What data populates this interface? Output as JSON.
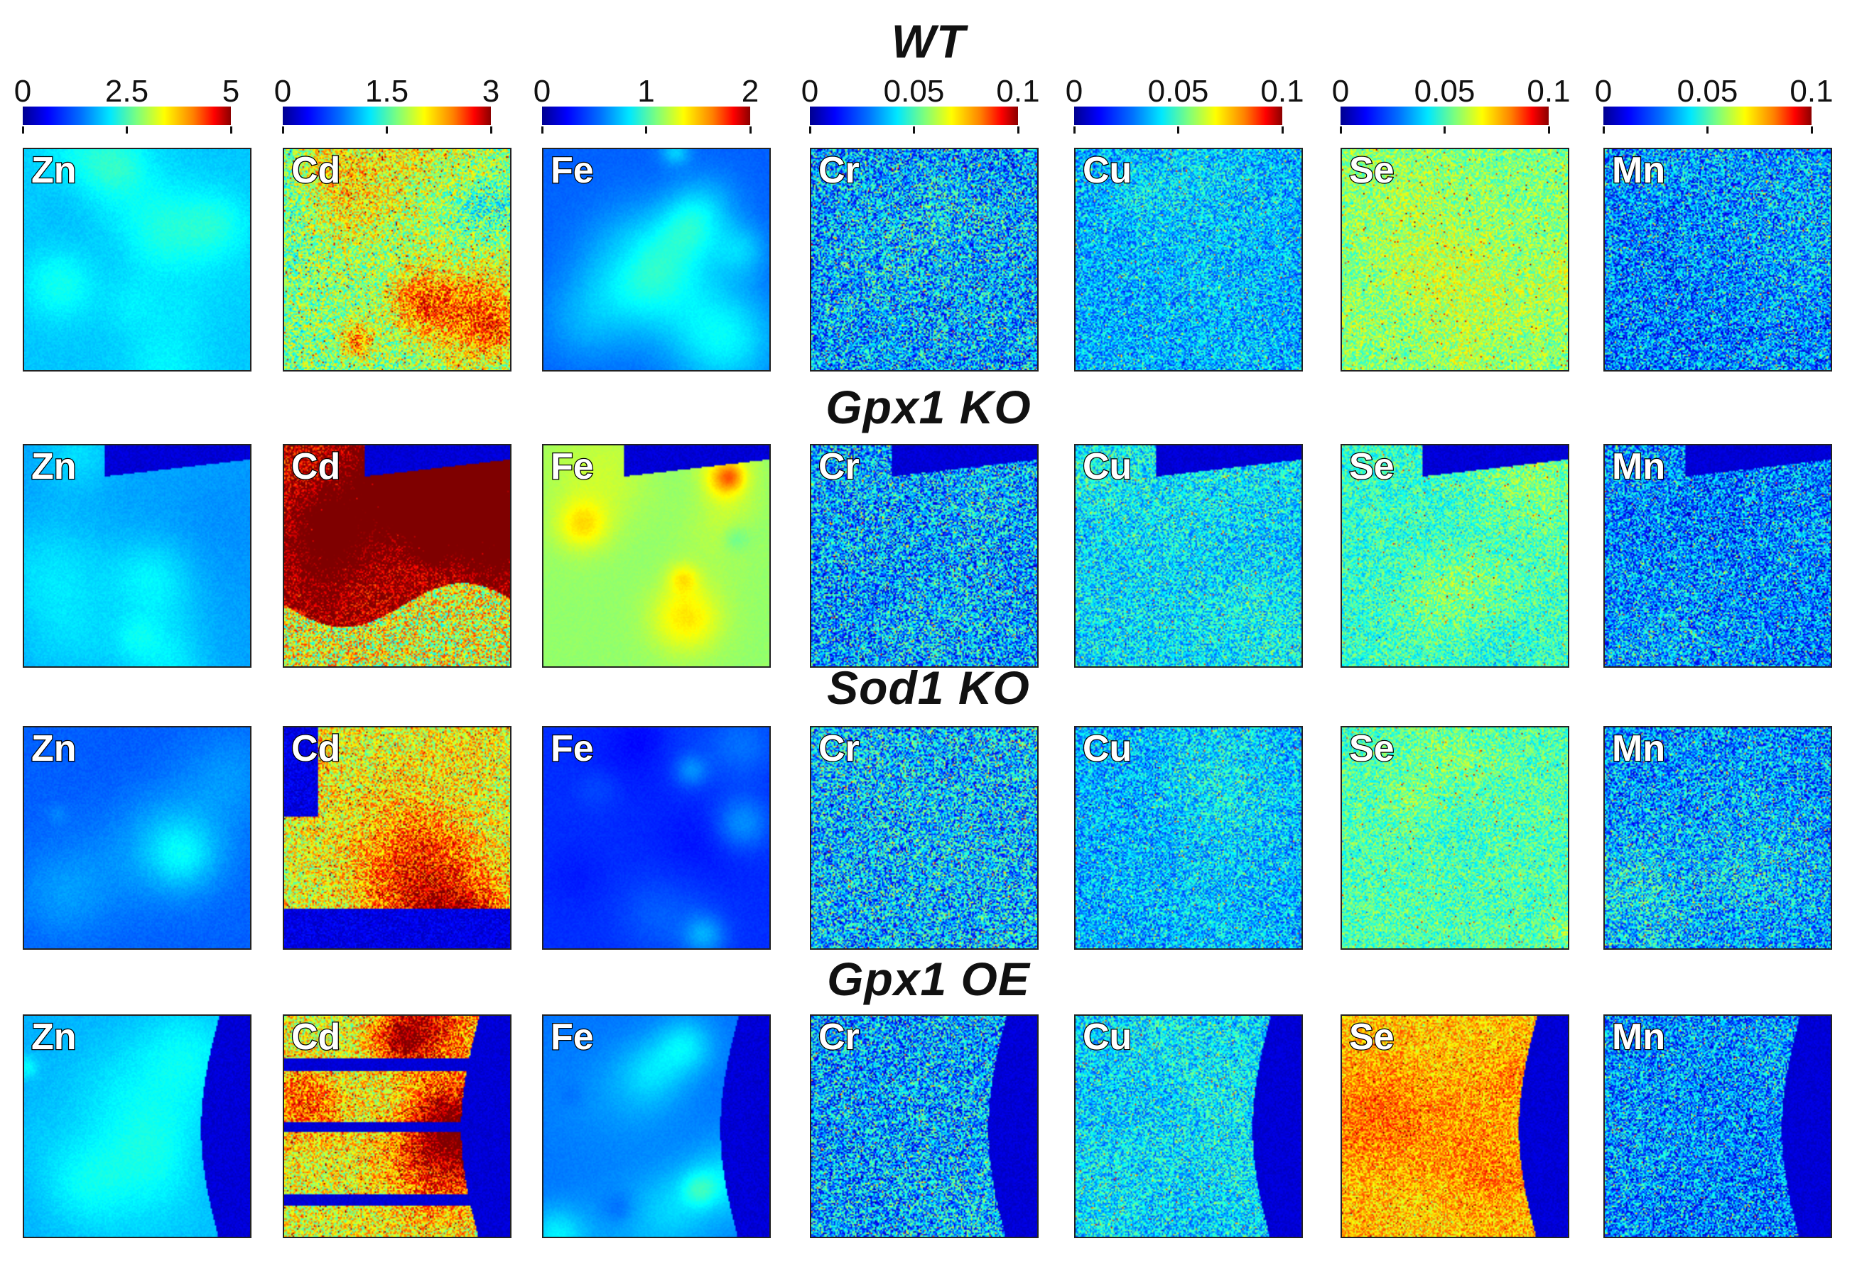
{
  "figure": {
    "row_titles": [
      "WT",
      "Gpx1 KO",
      "Sod1 KO",
      "Gpx1 OE"
    ],
    "colorbars": [
      {
        "element": "Zn",
        "labels": [
          "0",
          "2.5",
          "5"
        ]
      },
      {
        "element": "Cd",
        "labels": [
          "0",
          "1.5",
          "3"
        ]
      },
      {
        "element": "Fe",
        "labels": [
          "0",
          "1",
          "2"
        ]
      },
      {
        "element": "Cr",
        "labels": [
          "0",
          "0.05",
          "0.1"
        ]
      },
      {
        "element": "Cu",
        "labels": [
          "0",
          "0.05",
          "0.1"
        ]
      },
      {
        "element": "Se",
        "labels": [
          "0",
          "0.05",
          "0.1"
        ]
      },
      {
        "element": "Mn",
        "labels": [
          "0",
          "0.05",
          "0.1"
        ]
      }
    ],
    "elements": [
      "Zn",
      "Cd",
      "Fe",
      "Cr",
      "Cu",
      "Se",
      "Mn"
    ],
    "colormap": "jet"
  }
}
